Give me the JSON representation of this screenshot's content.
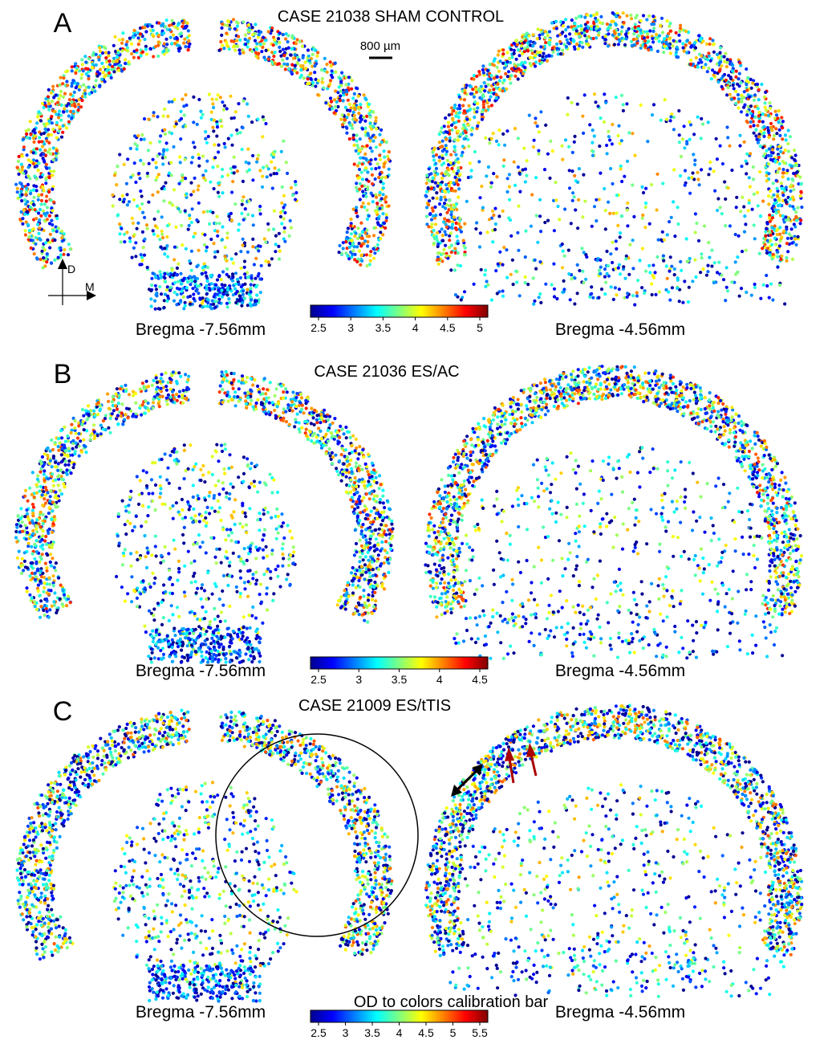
{
  "scale_bar": "800 µm",
  "orientation": {
    "dorsal": "D",
    "medial": "M"
  },
  "colorbar_title": "OD to colors calibration bar",
  "panels": [
    {
      "label": "A",
      "title": "CASE 21038  SHAM CONTROL",
      "sections": [
        "Bregma -7.56mm",
        "Bregma -4.56mm"
      ],
      "colorbar": {
        "range": [
          2.5,
          5
        ],
        "ticks": [
          2.5,
          3,
          3.5,
          4,
          4.5,
          5
        ]
      }
    },
    {
      "label": "B",
      "title": "CASE 21036 ES/AC",
      "sections": [
        "Bregma -7.56mm",
        "Bregma -4.56mm"
      ],
      "colorbar": {
        "range": [
          2.5,
          4.5
        ],
        "ticks": [
          2.5,
          3,
          3.5,
          4,
          4.5
        ]
      }
    },
    {
      "label": "C",
      "title": "CASE 21009 ES/tTIS",
      "sections": [
        "Bregma -7.56mm",
        "Bregma -4.56mm"
      ],
      "colorbar": {
        "range": [
          2.5,
          5.5
        ],
        "ticks": [
          2.5,
          3,
          3.5,
          4,
          4.5,
          5,
          5.5
        ]
      }
    }
  ]
}
